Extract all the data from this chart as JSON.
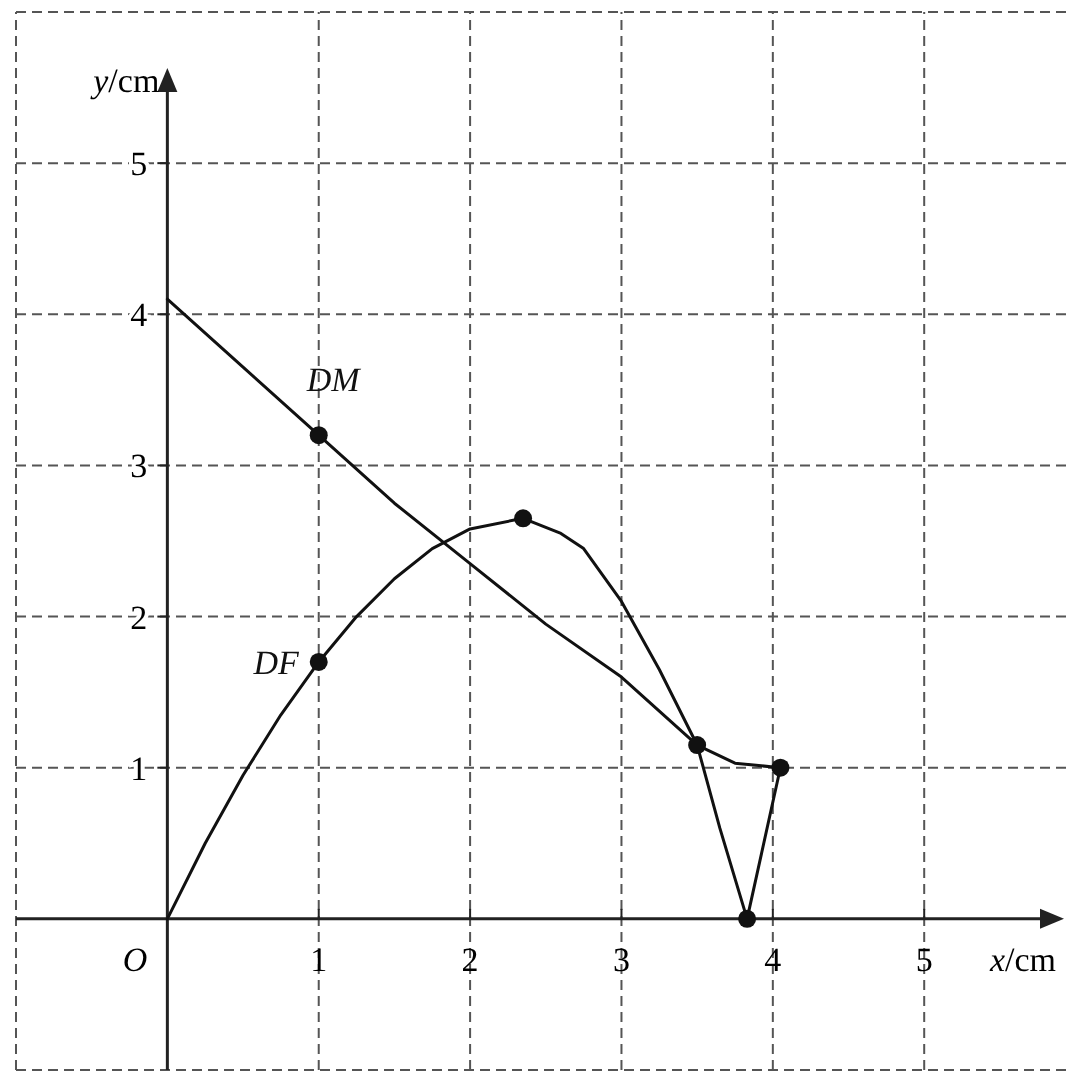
{
  "chart_data": {
    "type": "line",
    "xlabel": "x/cm",
    "ylabel": "y/cm",
    "xlim": [
      -1,
      5.95
    ],
    "ylim": [
      -1,
      6
    ],
    "xticks": [
      1,
      2,
      3,
      4,
      5
    ],
    "yticks": [
      1,
      2,
      3,
      4,
      5
    ],
    "grid": true,
    "line_style": "solid",
    "annotations": [
      "O"
    ],
    "series": [
      {
        "name": "DM",
        "color": "#111111",
        "marker": "none",
        "x": [
          0,
          0.5,
          1,
          1.5,
          2,
          2.5,
          3,
          3.5,
          3.75,
          4.05
        ],
        "values": [
          4.1,
          3.65,
          3.2,
          2.75,
          2.35,
          1.95,
          1.6,
          1.15,
          1.03,
          1.0
        ]
      },
      {
        "name": "DF",
        "color": "#111111",
        "marker": "none",
        "x": [
          0,
          0.25,
          0.5,
          0.75,
          1,
          1.25,
          1.5,
          1.75,
          2,
          2.35,
          2.6,
          2.75,
          3,
          3.25,
          3.5,
          3.65,
          3.83,
          4.05
        ],
        "values": [
          0,
          0.5,
          0.95,
          1.35,
          1.7,
          2.0,
          2.25,
          2.45,
          2.58,
          2.65,
          2.55,
          2.45,
          2.1,
          1.65,
          1.15,
          0.6,
          0,
          1.0
        ]
      },
      {
        "type": "scatter",
        "color": "#111111",
        "marker": "circle",
        "x": [
          1,
          1,
          2.35,
          3.5,
          3.83,
          4.05
        ],
        "values": [
          3.2,
          1.7,
          2.65,
          1.15,
          0,
          1.0
        ]
      }
    ]
  }
}
